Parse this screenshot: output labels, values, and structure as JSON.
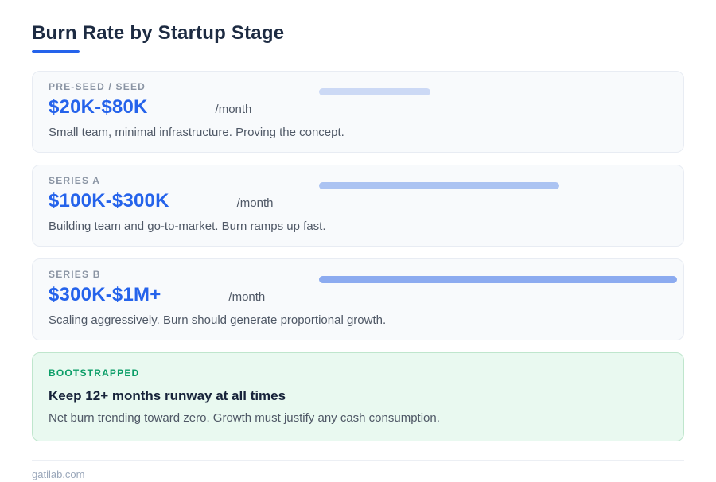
{
  "page": {
    "title": "Burn Rate by Startup Stage",
    "footer_text": "gatilab.com"
  },
  "colors": {
    "accent_blue": "#2563eb",
    "title_navy": "#1d2b42",
    "stage_label_gray": "#8a94a3",
    "body_text_gray": "#4f5866",
    "card_background": "#f8fafc",
    "card_border": "#e8ecf3",
    "highlight_green": "#0c9e68",
    "highlight_background": "#e9f9f0",
    "highlight_border": "#bfe6cd",
    "footer_gray": "#9aa7ba"
  },
  "cards": [
    {
      "label": "PRE-SEED / SEED",
      "amount": "$20K-$80K",
      "unit": "/month",
      "description": "Small team, minimal infrastructure. Proving the concept.",
      "bar_percent": 31,
      "bar_color": "#ccd9f5"
    },
    {
      "label": "SERIES A",
      "amount": "$100K-$300K",
      "unit": "/month",
      "description": "Building team and go-to-market. Burn ramps up fast.",
      "bar_percent": 67,
      "bar_color": "#abc3f2"
    },
    {
      "label": "SERIES B",
      "amount": "$300K-$1M+",
      "unit": "/month",
      "description": "Scaling aggressively. Burn should generate proportional growth.",
      "bar_percent": 100,
      "bar_color": "#8cabf0"
    }
  ],
  "highlight": {
    "label": "BOOTSTRAPPED",
    "title": "Keep 12+ months runway at all times",
    "description": "Net burn trending toward zero. Growth must justify any cash consumption."
  },
  "chart_data": {
    "type": "bar",
    "title": "Burn Rate by Startup Stage",
    "categories": [
      "Pre-Seed / Seed",
      "Series A",
      "Series B"
    ],
    "values": [
      31,
      67,
      100
    ],
    "value_unit": "percent of max bar length",
    "burn_ranges": [
      "$20K-$80K /month",
      "$100K-$300K /month",
      "$300K-$1M+ /month"
    ],
    "annotations": [
      "Pre-Seed / Seed: Small team, minimal infrastructure. Proving the concept.",
      "Series A: Building team and go-to-market. Burn ramps up fast.",
      "Series B: Scaling aggressively. Burn should generate proportional growth.",
      "Bootstrapped: Keep 12+ months runway at all times — Net burn trending toward zero. Growth must justify any cash consumption."
    ],
    "legend_position": "none",
    "grid": false,
    "orientation": "horizontal"
  }
}
